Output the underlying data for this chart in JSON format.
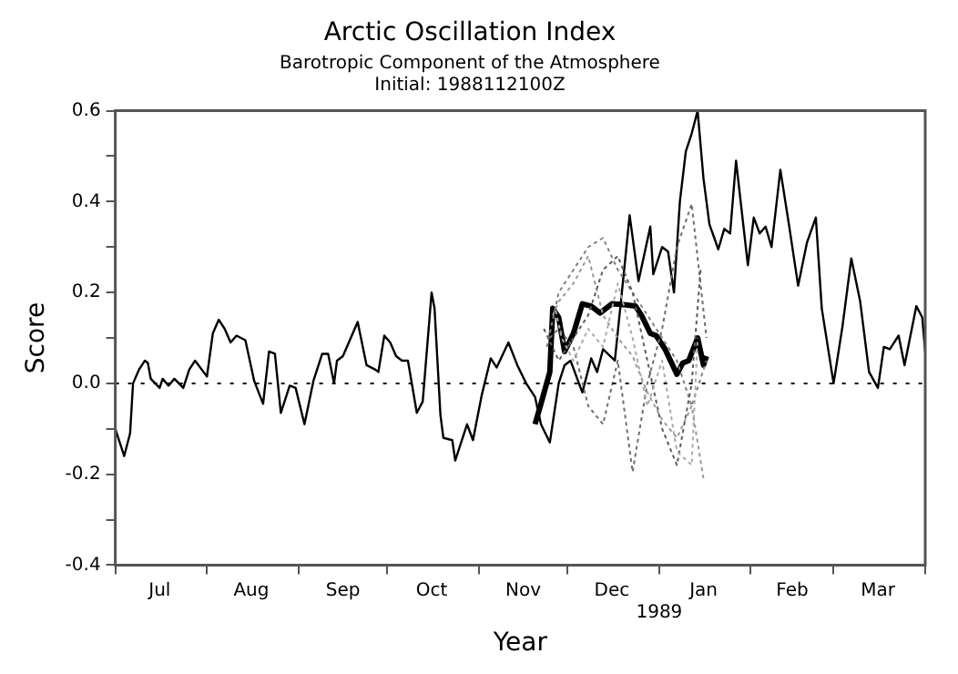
{
  "chart_data": {
    "type": "line",
    "title": "Arctic Oscillation Index",
    "subtitle": "Barotropic Component of the Atmosphere",
    "annotations": [
      "Initial: 1988112100Z",
      "1989"
    ],
    "xlabel": "Year",
    "ylabel": "Score",
    "xlim": [
      "1988-07-01",
      "1989-04-01"
    ],
    "xticks": [
      {
        "value": "1988-07-01",
        "label": null
      },
      {
        "value": "1988-07-16",
        "label": "Jul"
      },
      {
        "value": "1988-08-01",
        "label": null
      },
      {
        "value": "1988-08-16",
        "label": "Aug"
      },
      {
        "value": "1988-09-01",
        "label": null
      },
      {
        "value": "1988-09-16",
        "label": "Sep"
      },
      {
        "value": "1988-10-01",
        "label": null
      },
      {
        "value": "1988-10-16",
        "label": "Oct"
      },
      {
        "value": "1988-11-01",
        "label": null
      },
      {
        "value": "1988-11-16",
        "label": "Nov"
      },
      {
        "value": "1988-12-01",
        "label": null
      },
      {
        "value": "1988-12-16",
        "label": "Dec"
      },
      {
        "value": "1989-01-01",
        "label": null
      },
      {
        "value": "1989-01-16",
        "label": "Jan"
      },
      {
        "value": "1989-02-01",
        "label": null
      },
      {
        "value": "1989-02-15",
        "label": "Feb"
      },
      {
        "value": "1989-03-01",
        "label": null
      },
      {
        "value": "1989-03-16",
        "label": "Mar"
      },
      {
        "value": "1989-04-01",
        "label": null
      }
    ],
    "ylim": [
      -0.4,
      0.6
    ],
    "yticks": [
      {
        "value": -0.4,
        "label": "-0.4"
      },
      {
        "value": -0.3,
        "label": null
      },
      {
        "value": -0.2,
        "label": "-0.2"
      },
      {
        "value": -0.1,
        "label": null
      },
      {
        "value": 0,
        "label": "0.0"
      },
      {
        "value": 0.1,
        "label": null
      },
      0.2,
      {
        "value": 0.3,
        "label": null
      },
      0.4,
      {
        "value": 0.5,
        "label": null
      },
      0.6
    ],
    "grid": false,
    "legend": false,
    "ref_lines": [
      {
        "axis": "y",
        "value": 0,
        "color": "#000000",
        "line_style": "dotted"
      }
    ],
    "series": [
      {
        "color": "#000000",
        "line_style": "solid",
        "x": [
          "1988-07-01",
          "1988-07-04",
          "1988-07-06",
          "1988-07-07",
          "1988-07-09",
          "1988-07-11",
          "1988-07-12",
          "1988-07-13",
          "1988-07-16",
          "1988-07-17",
          "1988-07-19",
          "1988-07-21",
          "1988-07-24",
          "1988-07-26",
          "1988-07-28",
          "1988-08-01",
          "1988-08-03",
          "1988-08-05",
          "1988-08-07",
          "1988-08-09",
          "1988-08-11",
          "1988-08-14",
          "1988-08-17",
          "1988-08-20",
          "1988-08-22",
          "1988-08-24",
          "1988-08-26",
          "1988-08-29",
          "1988-08-31",
          "1988-09-03",
          "1988-09-06",
          "1988-09-09",
          "1988-09-11",
          "1988-09-13",
          "1988-09-14",
          "1988-09-16",
          "1988-09-21",
          "1988-09-24",
          "1988-09-27",
          "1988-09-28",
          "1988-09-30",
          "1988-10-02",
          "1988-10-04",
          "1988-10-06",
          "1988-10-08",
          "1988-10-11",
          "1988-10-13",
          "1988-10-16",
          "1988-10-17",
          "1988-10-19",
          "1988-10-20",
          "1988-10-23",
          "1988-10-24",
          "1988-10-28",
          "1988-10-30",
          "1988-11-02",
          "1988-11-05",
          "1988-11-07",
          "1988-11-11",
          "1988-11-14",
          "1988-11-17",
          "1988-11-20",
          "1988-11-22",
          "1988-11-25",
          "1988-11-28",
          "1988-11-30",
          "1988-12-02",
          "1988-12-06",
          "1988-12-09",
          "1988-12-11",
          "1988-12-13",
          "1988-12-17",
          "1988-12-20",
          "1988-12-22",
          "1988-12-25",
          "1988-12-29",
          "1988-12-30",
          "1989-01-02",
          "1989-01-04",
          "1989-01-06",
          "1989-01-08",
          "1989-01-10",
          "1989-01-12",
          "1989-01-14",
          "1989-01-16",
          "1989-01-18",
          "1989-01-21",
          "1989-01-23",
          "1989-01-25",
          "1989-01-27",
          "1989-01-31",
          "1989-02-02",
          "1989-02-04",
          "1989-02-06",
          "1989-02-08",
          "1989-02-11",
          "1989-02-14",
          "1989-02-17",
          "1989-02-20",
          "1989-02-23",
          "1989-02-25",
          "1989-03-01",
          "1989-03-04",
          "1989-03-07",
          "1989-03-10",
          "1989-03-13",
          "1989-03-16",
          "1989-03-18",
          "1989-03-20",
          "1989-03-23",
          "1989-03-25",
          "1989-03-29",
          "1989-03-31",
          "1989-04-01"
        ],
        "values": [
          -0.1,
          -0.16,
          -0.11,
          0.0,
          0.03,
          0.05,
          0.045,
          0.01,
          -0.01,
          0.01,
          -0.005,
          0.01,
          -0.01,
          0.03,
          0.05,
          0.015,
          0.11,
          0.14,
          0.12,
          0.09,
          0.105,
          0.095,
          0.005,
          -0.045,
          0.07,
          0.065,
          -0.065,
          -0.005,
          -0.01,
          -0.09,
          0.005,
          0.065,
          0.065,
          0.0,
          0.05,
          0.06,
          0.135,
          0.04,
          0.03,
          0.025,
          0.105,
          0.09,
          0.06,
          0.05,
          0.05,
          -0.065,
          -0.04,
          0.2,
          0.165,
          -0.07,
          -0.12,
          -0.125,
          -0.17,
          -0.09,
          -0.125,
          -0.025,
          0.055,
          0.035,
          0.09,
          0.04,
          0.0,
          -0.03,
          -0.09,
          -0.13,
          0.0,
          0.04,
          0.05,
          -0.02,
          0.055,
          0.025,
          0.075,
          0.05,
          0.24,
          0.37,
          0.225,
          0.345,
          0.24,
          0.3,
          0.29,
          0.2,
          0.4,
          0.51,
          0.55,
          0.6,
          0.45,
          0.35,
          0.295,
          0.34,
          0.33,
          0.49,
          0.26,
          0.365,
          0.33,
          0.345,
          0.3,
          0.47,
          0.345,
          0.215,
          0.31,
          0.365,
          0.165,
          0.0,
          0.125,
          0.275,
          0.18,
          0.025,
          -0.01,
          0.08,
          0.075,
          0.105,
          0.04,
          0.17,
          0.145,
          0.07
        ]
      },
      {
        "color": "#000000",
        "line_style": "solid",
        "x": [
          "1988-11-20",
          "1988-11-22",
          "1988-11-25",
          "1988-11-26",
          "1988-11-28",
          "1988-11-30",
          "1988-12-03",
          "1988-12-06",
          "1988-12-09",
          "1988-12-12",
          "1988-12-16",
          "1988-12-20",
          "1988-12-24",
          "1988-12-26",
          "1988-12-29",
          "1988-12-31",
          "1989-01-03",
          "1989-01-07",
          "1989-01-09",
          "1989-01-11",
          "1989-01-14",
          "1989-01-16",
          "1989-01-17"
        ],
        "values": [
          -0.09,
          -0.045,
          0.025,
          0.165,
          0.145,
          0.07,
          0.11,
          0.175,
          0.17,
          0.155,
          0.175,
          0.173,
          0.17,
          0.15,
          0.11,
          0.105,
          0.075,
          0.02,
          0.045,
          0.05,
          0.1,
          0.04,
          0.06
        ]
      },
      {
        "color": "#808080",
        "line_style": "dotted",
        "x": [
          "1988-11-24",
          "1988-11-28",
          "1988-12-03",
          "1988-12-08",
          "1988-12-13",
          "1988-12-18",
          "1988-12-23",
          "1988-12-28",
          "1989-01-02",
          "1989-01-07",
          "1989-01-12",
          "1989-01-17"
        ],
        "values": [
          0.08,
          0.2,
          0.25,
          0.3,
          0.32,
          0.25,
          0.2,
          0.15,
          0.1,
          0.05,
          -0.05,
          0.05
        ]
      },
      {
        "color": "#6e6e6e",
        "line_style": "dotted",
        "x": [
          "1988-11-25",
          "1988-11-28",
          "1988-12-03",
          "1988-12-08",
          "1988-12-13",
          "1988-12-18",
          "1988-12-23",
          "1988-12-28",
          "1989-01-02",
          "1989-01-07",
          "1989-01-12",
          "1989-01-17"
        ],
        "values": [
          0.1,
          0.12,
          0.08,
          -0.05,
          -0.09,
          0.05,
          -0.195,
          0.0,
          0.12,
          0.3,
          0.395,
          0.1
        ]
      },
      {
        "color": "#999999",
        "line_style": "dotted",
        "x": [
          "1988-11-26",
          "1988-11-28",
          "1988-12-03",
          "1988-12-08",
          "1988-12-13",
          "1988-12-18",
          "1988-12-23",
          "1988-12-28",
          "1989-01-02",
          "1989-01-07",
          "1989-01-12",
          "1989-01-16"
        ],
        "values": [
          0.15,
          0.18,
          0.22,
          0.28,
          0.15,
          0.1,
          0.06,
          -0.02,
          -0.08,
          -0.12,
          -0.05,
          -0.21
        ]
      },
      {
        "color": "#5c5c5c",
        "line_style": "dotted",
        "x": [
          "1988-11-23",
          "1988-11-28",
          "1988-12-03",
          "1988-12-08",
          "1988-12-13",
          "1988-12-18",
          "1988-12-23",
          "1988-12-28",
          "1989-01-02",
          "1989-01-07",
          "1989-01-12",
          "1989-01-15"
        ],
        "values": [
          0.12,
          0.05,
          0.1,
          0.15,
          0.25,
          0.28,
          0.2,
          0.05,
          -0.1,
          -0.18,
          0.0,
          0.25
        ]
      },
      {
        "color": "#aaaaaa",
        "line_style": "dotted",
        "x": [
          "1988-11-27",
          "1988-11-29",
          "1988-12-03",
          "1988-12-08",
          "1988-12-13",
          "1988-12-18",
          "1988-12-23",
          "1988-12-28",
          "1989-01-02",
          "1989-01-07",
          "1989-01-12",
          "1989-01-14"
        ],
        "values": [
          0.16,
          0.1,
          0.05,
          0.12,
          0.08,
          0.22,
          0.1,
          -0.05,
          0.05,
          -0.15,
          -0.18,
          0.1
        ]
      }
    ]
  }
}
